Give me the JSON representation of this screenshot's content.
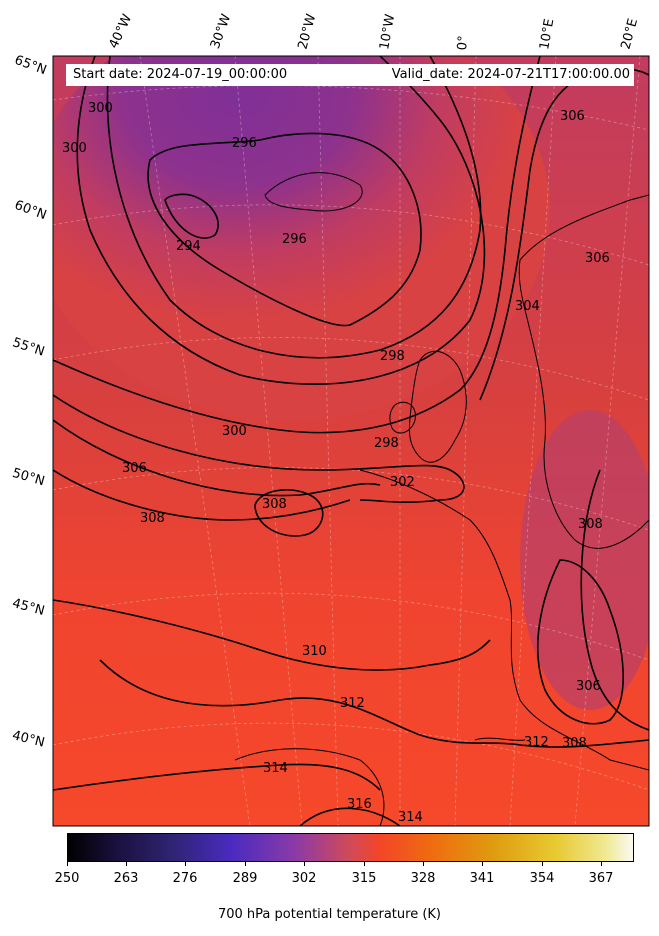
{
  "map": {
    "lon_labels": [
      "40°W",
      "30°W",
      "20°W",
      "10°W",
      "0°",
      "10°E",
      "20°E"
    ],
    "lat_labels": [
      "65°N",
      "60°N",
      "55°N",
      "50°N",
      "45°N",
      "40°N"
    ],
    "contour_labels": [
      "300",
      "300",
      "296",
      "294",
      "296",
      "298",
      "304",
      "306",
      "306",
      "300",
      "306",
      "308",
      "308",
      "298",
      "302",
      "308",
      "310",
      "312",
      "314",
      "316",
      "314",
      "312",
      "308",
      "306"
    ],
    "colors": {
      "cold": "#8a3090",
      "mid": "#d0404c",
      "warm": "#f44428",
      "contour": "#000000"
    }
  },
  "info": {
    "start": "Start date: 2024-07-19_00:00:00",
    "valid": "Valid_date: 2024-07-21T17:00:00.00"
  },
  "colorbar": {
    "ticks": [
      "250",
      "263",
      "276",
      "289",
      "302",
      "315",
      "328",
      "341",
      "354",
      "367"
    ],
    "title": "700 hPa potential temperature (K)",
    "colormap": "CMRmap"
  }
}
